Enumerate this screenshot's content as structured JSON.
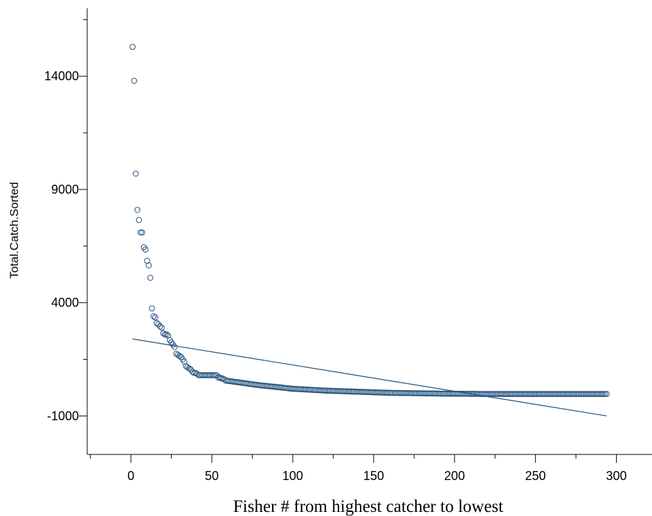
{
  "chart_data": {
    "type": "scatter",
    "title": "",
    "xlabel": "Fisher # from highest catcher to lowest",
    "ylabel": "Total.Catch.Sorted",
    "xlim": [
      -27,
      322
    ],
    "ylim": [
      -2700,
      17000
    ],
    "x_ticks": [
      0,
      50,
      100,
      150,
      200,
      250,
      300
    ],
    "y_ticks": [
      -1000,
      4000,
      9000,
      14000
    ],
    "grid": false,
    "legend": "none",
    "colors": {
      "marker": "#1f4e79",
      "trend_line": "#1f4e79",
      "axis": "#000000"
    },
    "head_points": [
      [
        1,
        15300
      ],
      [
        2,
        13800
      ],
      [
        3,
        9700
      ],
      [
        4,
        8100
      ],
      [
        5,
        7650
      ],
      [
        6,
        7100
      ],
      [
        7,
        7100
      ],
      [
        8,
        6450
      ],
      [
        9,
        6350
      ],
      [
        10,
        5850
      ],
      [
        11,
        5650
      ],
      [
        12,
        5100
      ],
      [
        13,
        3750
      ],
      [
        14,
        3400
      ],
      [
        15,
        3350
      ],
      [
        16,
        3100
      ],
      [
        17,
        3050
      ],
      [
        18,
        2950
      ],
      [
        19,
        2900
      ],
      [
        20,
        2650
      ],
      [
        21,
        2600
      ],
      [
        22,
        2600
      ],
      [
        23,
        2550
      ],
      [
        24,
        2350
      ],
      [
        25,
        2250
      ],
      [
        26,
        2150
      ],
      [
        27,
        2050
      ],
      [
        28,
        1750
      ],
      [
        29,
        1700
      ],
      [
        30,
        1650
      ],
      [
        31,
        1600
      ],
      [
        32,
        1500
      ],
      [
        33,
        1400
      ],
      [
        34,
        1200
      ],
      [
        35,
        1150
      ],
      [
        36,
        1100
      ],
      [
        37,
        1050
      ],
      [
        38,
        950
      ],
      [
        39,
        900
      ],
      [
        40,
        900
      ],
      [
        41,
        850
      ],
      [
        42,
        800
      ],
      [
        43,
        800
      ],
      [
        44,
        800
      ],
      [
        45,
        800
      ],
      [
        46,
        800
      ],
      [
        47,
        800
      ],
      [
        48,
        800
      ],
      [
        49,
        800
      ],
      [
        50,
        800
      ],
      [
        51,
        800
      ],
      [
        52,
        800
      ],
      [
        53,
        800
      ],
      [
        54,
        700
      ],
      [
        55,
        700
      ],
      [
        56,
        650
      ],
      [
        57,
        650
      ],
      [
        58,
        600
      ],
      [
        59,
        550
      ],
      [
        60,
        550
      ]
    ],
    "tail_curve": [
      [
        60,
        550
      ],
      [
        70,
        450
      ],
      [
        80,
        350
      ],
      [
        90,
        280
      ],
      [
        100,
        200
      ],
      [
        120,
        120
      ],
      [
        140,
        70
      ],
      [
        160,
        20
      ],
      [
        180,
        0
      ],
      [
        200,
        -20
      ],
      [
        220,
        -30
      ],
      [
        260,
        -30
      ],
      [
        294,
        -30
      ]
    ],
    "trend_line": {
      "x": [
        1,
        294
      ],
      "y": [
        2400,
        -1000
      ]
    }
  }
}
